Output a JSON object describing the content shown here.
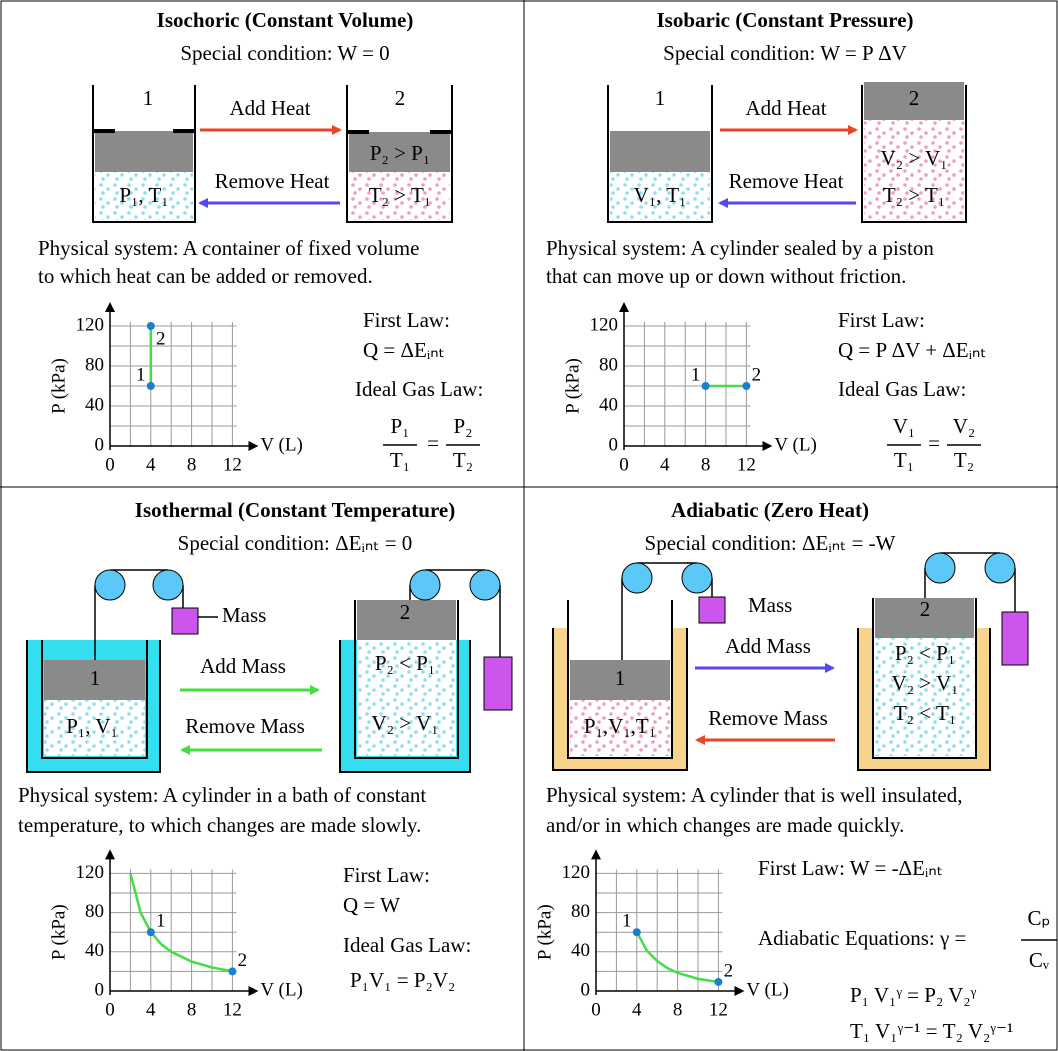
{
  "panels": [
    {
      "title": "Isochoric (Constant Volume)",
      "condition": "Special condition: W = 0",
      "state1": {
        "number": "1",
        "labels": [
          "P₁, T₁"
        ]
      },
      "state2": {
        "number": "2",
        "labels": [
          "P₂ > P₁",
          "T₂ > T₁"
        ]
      },
      "forward": "Add Heat",
      "backward": "Remove Heat",
      "description": [
        "Physical system: A container of fixed volume",
        "to which heat can be added or removed."
      ],
      "graph": {
        "xlabel": "V (L)",
        "ylabel": "P (kPa)",
        "xticks": [
          0,
          4,
          8,
          12
        ],
        "yticks": [
          0,
          40,
          80,
          120
        ],
        "grid_x": [
          0,
          2,
          4,
          6,
          8,
          10,
          12
        ],
        "grid_y": [
          0,
          20,
          40,
          60,
          80,
          100,
          120
        ],
        "curve": {
          "x": [
            4,
            4
          ],
          "y": [
            60,
            120
          ]
        },
        "points": [
          {
            "label": "1",
            "x": 4,
            "y": 60
          },
          {
            "label": "2",
            "x": 4,
            "y": 120
          }
        ]
      },
      "first_law": {
        "title": "First Law:",
        "equation": "Q = ΔEᵢₙₜ"
      },
      "gas_law": {
        "title": "Ideal Gas Law:",
        "lhs": [
          "P₁",
          "T₁"
        ],
        "equals": "=",
        "rhs": [
          "P₂",
          "T₂"
        ]
      }
    },
    {
      "title": "Isobaric (Constant Pressure)",
      "condition": "Special condition: W = P ΔV",
      "state1": {
        "number": "1",
        "labels": [
          "V₁, T₁"
        ]
      },
      "state2": {
        "number": "2",
        "labels": [
          "V₂ > V₁",
          "T₂ > T₁"
        ]
      },
      "forward": "Add Heat",
      "backward": "Remove Heat",
      "description": [
        "Physical system: A cylinder sealed by a piston",
        "that can move up or down without friction."
      ],
      "graph": {
        "xlabel": "V (L)",
        "ylabel": "P (kPa)",
        "xticks": [
          0,
          4,
          8,
          12
        ],
        "yticks": [
          0,
          40,
          80,
          120
        ],
        "grid_x": [
          0,
          2,
          4,
          6,
          8,
          10,
          12
        ],
        "grid_y": [
          0,
          20,
          40,
          60,
          80,
          100,
          120
        ],
        "curve": {
          "x": [
            8,
            12
          ],
          "y": [
            60,
            60
          ]
        },
        "points": [
          {
            "label": "1",
            "x": 8,
            "y": 60
          },
          {
            "label": "2",
            "x": 12,
            "y": 60
          }
        ]
      },
      "first_law": {
        "title": "First Law:",
        "equation": "Q = P ΔV + ΔEᵢₙₜ"
      },
      "gas_law": {
        "title": "Ideal Gas Law:",
        "lhs": [
          "V₁",
          "T₁"
        ],
        "equals": "=",
        "rhs": [
          "V₂",
          "T₂"
        ]
      }
    },
    {
      "title": "Isothermal  (Constant Temperature)",
      "condition": "Special condition: ΔEᵢₙₜ = 0",
      "mass": "Mass",
      "state1": {
        "number": "1",
        "labels": [
          "P₁, V₁"
        ]
      },
      "state2": {
        "number": "2",
        "labels": [
          "P₂ < P₁",
          "V₂ > V₁"
        ]
      },
      "forward": "Add Mass",
      "backward": "Remove Mass",
      "description": [
        "Physical system: A cylinder in a bath of constant",
        "temperature, to which changes are made slowly."
      ],
      "graph": {
        "xlabel": "V (L)",
        "ylabel": "P (kPa)",
        "xticks": [
          0,
          4,
          8,
          12
        ],
        "yticks": [
          0,
          40,
          80,
          120
        ],
        "grid_x": [
          0,
          2,
          4,
          6,
          8,
          10,
          12
        ],
        "grid_y": [
          0,
          20,
          40,
          60,
          80,
          100,
          120
        ],
        "curve": {
          "x": [
            2,
            3,
            4,
            5,
            6,
            8,
            10,
            12
          ],
          "y": [
            120,
            80,
            60,
            48,
            40,
            30,
            24,
            20
          ]
        },
        "points": [
          {
            "label": "1",
            "x": 4,
            "y": 60
          },
          {
            "label": "2",
            "x": 12,
            "y": 20
          }
        ]
      },
      "first_law": {
        "title": "First Law:",
        "equation": "Q = W"
      },
      "gas_law": {
        "title": "Ideal Gas Law:",
        "equation": "P₁V₁ = P₂V₂"
      }
    },
    {
      "title": "Adiabatic (Zero Heat)",
      "condition": "Special condition: ΔEᵢₙₜ = -W",
      "mass": "Mass",
      "state1": {
        "number": "1",
        "labels": [
          "P₁,V₁,T₁"
        ]
      },
      "state2": {
        "number": "2",
        "labels": [
          "P₂ < P₁",
          "V₂ > V₁",
          "T₂ < T₁"
        ]
      },
      "forward": "Add Mass",
      "backward": "Remove Mass",
      "description": [
        "Physical system: A cylinder that is well insulated,",
        "and/or in which changes are made quickly."
      ],
      "graph": {
        "xlabel": "V (L)",
        "ylabel": "P (kPa)",
        "xticks": [
          0,
          4,
          8,
          12
        ],
        "yticks": [
          0,
          40,
          80,
          120
        ],
        "grid_x": [
          0,
          2,
          4,
          6,
          8,
          10,
          12
        ],
        "grid_y": [
          0,
          20,
          40,
          60,
          80,
          100,
          120
        ],
        "curve": {
          "x": [
            4,
            5,
            6,
            7,
            8,
            10,
            12
          ],
          "y": [
            60,
            41,
            30.6,
            23.3,
            18.5,
            12.4,
            9.2
          ]
        },
        "points": [
          {
            "label": "1",
            "x": 4,
            "y": 60
          },
          {
            "label": "2",
            "x": 12,
            "y": 9.2
          }
        ]
      },
      "first_law": {
        "equation": "First Law: W = -ΔEᵢₙₜ"
      },
      "adiabatic": {
        "title": "Adiabatic Equations: γ =",
        "num": "Cₚ",
        "den": "Cᵥ",
        "equations": [
          "P₁ V₁ᵞ = P₂ V₂ᵞ",
          "T₁ V₁ᵞ⁻¹ = T₂ V₂ᵞ⁻¹"
        ]
      }
    }
  ]
}
